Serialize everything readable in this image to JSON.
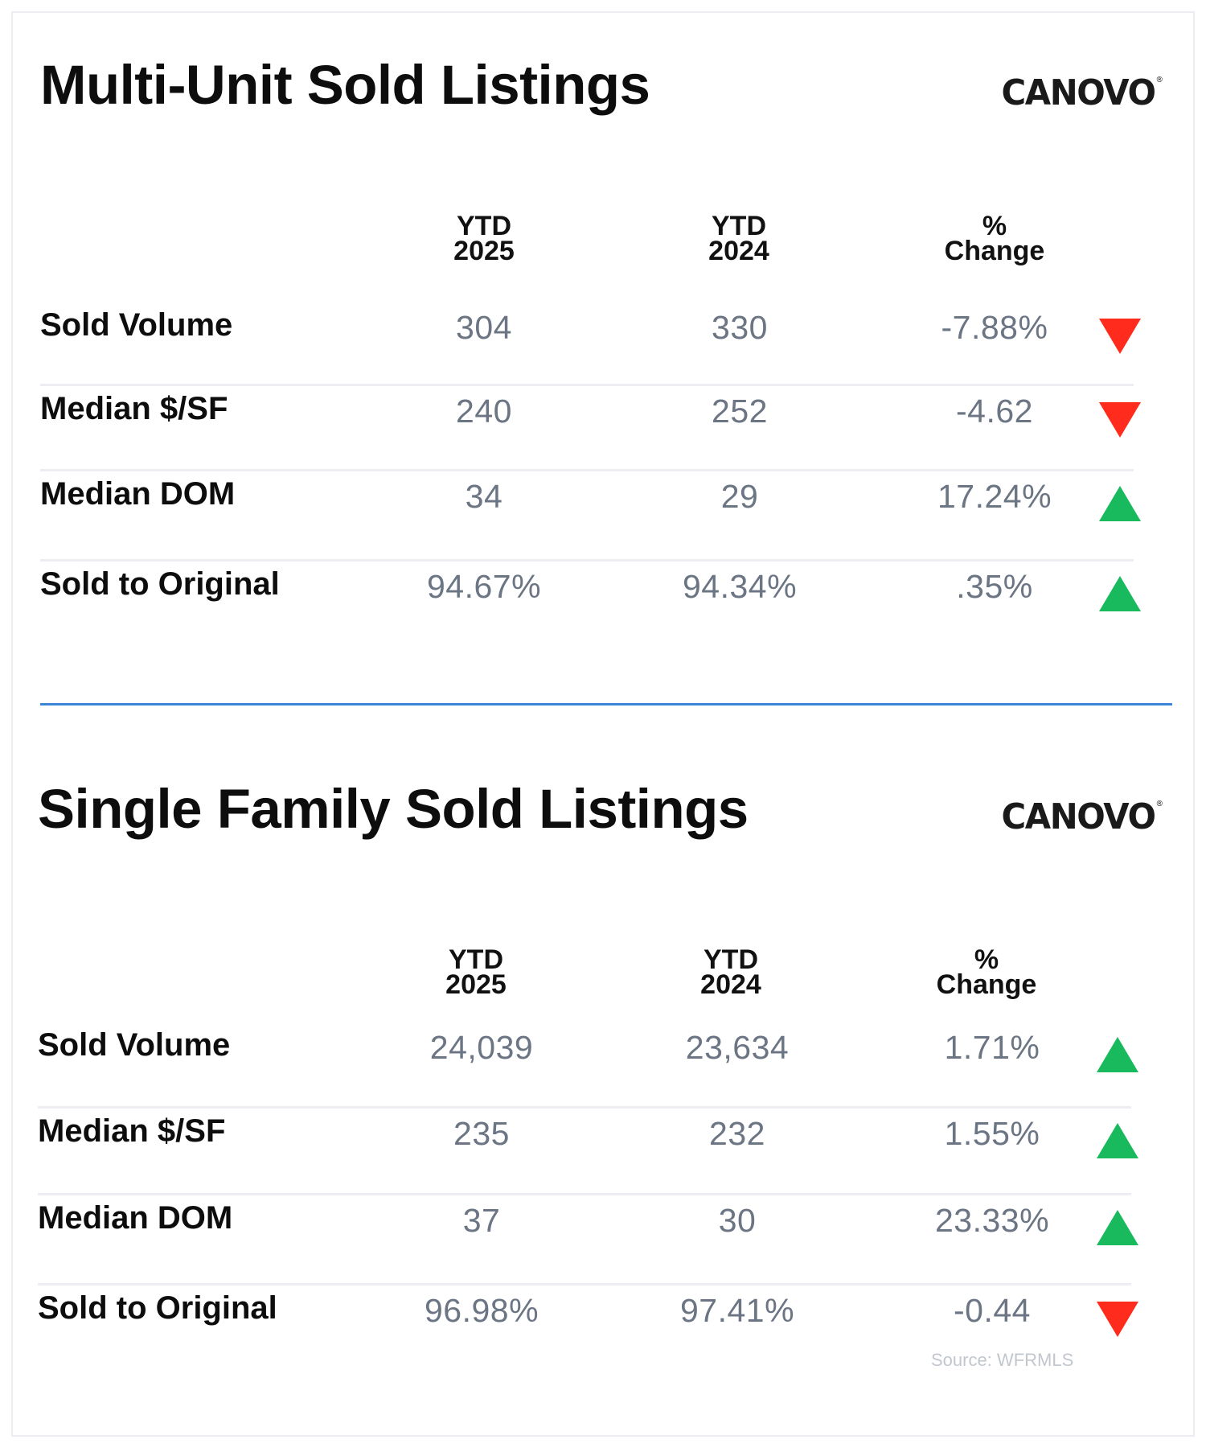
{
  "logo_text": "CANOVO",
  "logo_mark": "®",
  "sections": [
    {
      "title": "Multi-Unit Sold Listings",
      "headers": {
        "col1": [
          "YTD",
          "2025"
        ],
        "col2": [
          "YTD",
          "2024"
        ],
        "col3": [
          "%",
          "Change"
        ]
      },
      "rows": [
        {
          "label": "Sold Volume",
          "ytd2025": "304",
          "ytd2024": "330",
          "change": "-7.88%",
          "trend": "down"
        },
        {
          "label": "Median $/SF",
          "ytd2025": "240",
          "ytd2024": "252",
          "change": "-4.62",
          "trend": "down"
        },
        {
          "label": "Median DOM",
          "ytd2025": "34",
          "ytd2024": "29",
          "change": "17.24%",
          "trend": "up"
        },
        {
          "label": "Sold to Original",
          "ytd2025": "94.67%",
          "ytd2024": "94.34%",
          "change": ".35%",
          "trend": "up"
        }
      ]
    },
    {
      "title": "Single Family Sold Listings",
      "headers": {
        "col1": [
          "YTD",
          "2025"
        ],
        "col2": [
          "YTD",
          "2024"
        ],
        "col3": [
          "%",
          "Change"
        ]
      },
      "rows": [
        {
          "label": "Sold Volume",
          "ytd2025": "24,039",
          "ytd2024": "23,634",
          "change": "1.71%",
          "trend": "up"
        },
        {
          "label": "Median $/SF",
          "ytd2025": "235",
          "ytd2024": "232",
          "change": "1.55%",
          "trend": "up"
        },
        {
          "label": "Median DOM",
          "ytd2025": "37",
          "ytd2024": "30",
          "change": "23.33%",
          "trend": "up"
        },
        {
          "label": "Sold to Original",
          "ytd2025": "96.98%",
          "ytd2024": "97.41%",
          "change": "-0.44",
          "trend": "down"
        }
      ]
    }
  ],
  "source": "Source: WFRMLS",
  "colors": {
    "up": "#19b95d",
    "down": "#ff2b1c",
    "divider": "#3a86d8",
    "value_text": "#6b7583"
  }
}
